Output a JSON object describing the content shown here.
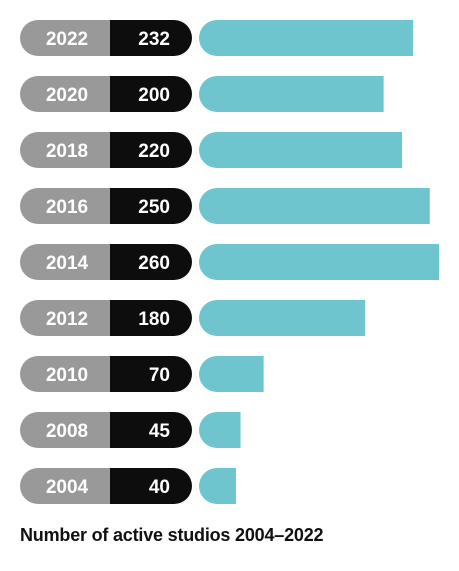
{
  "chart_data": {
    "type": "bar",
    "orientation": "horizontal",
    "title": "Number of active studios 2004–2022",
    "categories": [
      "2022",
      "2020",
      "2018",
      "2016",
      "2014",
      "2012",
      "2010",
      "2008",
      "2004"
    ],
    "values": [
      232,
      200,
      220,
      250,
      260,
      180,
      70,
      45,
      40
    ],
    "value_labels": [
      "232",
      "200",
      "220",
      "250",
      "260",
      "180",
      "70",
      "45",
      "40"
    ],
    "xlim": [
      0,
      260
    ],
    "grid": false,
    "legend": "none"
  },
  "colors": {
    "bar": "#6ec5ce",
    "year_pill": "#999999",
    "value_pill": "#0d0d0d",
    "label_text": "#ffffff",
    "caption_text": "#111111"
  }
}
